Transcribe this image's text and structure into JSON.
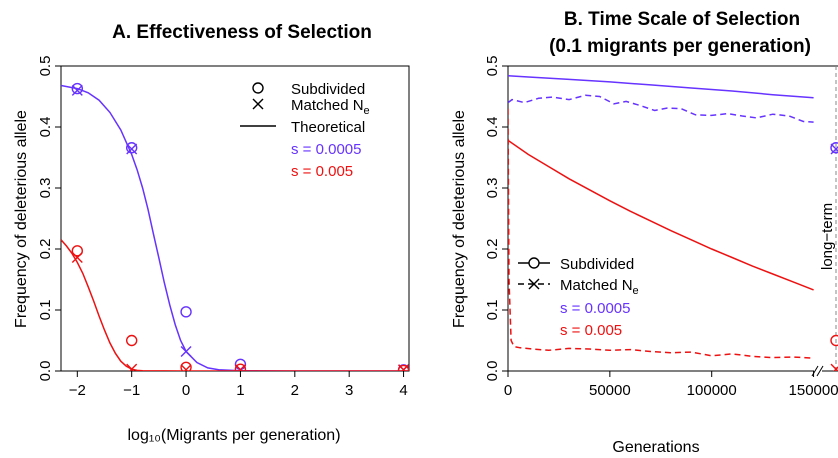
{
  "colors": {
    "purple": "#6633ff",
    "red": "#ee1111",
    "black": "#000000",
    "gray": "#888888"
  },
  "chart_data": [
    {
      "id": "A",
      "type": "scatter",
      "title": "A. Effectiveness of Selection",
      "xlabel": "log₁₀(Migrants per generation)",
      "ylabel": "Frequency of deleterious allele",
      "xlim": [
        -2.3,
        4.1
      ],
      "ylim": [
        0,
        0.5
      ],
      "xticks": [
        "−2",
        "−1",
        "0",
        "1",
        "2",
        "3",
        "4"
      ],
      "xtick_values": [
        -2,
        -1,
        0,
        1,
        2,
        3,
        4
      ],
      "yticks": [
        "0.0",
        "0.1",
        "0.2",
        "0.3",
        "0.4",
        "0.5"
      ],
      "ytick_values": [
        0,
        0.1,
        0.2,
        0.3,
        0.4,
        0.5
      ],
      "legend": {
        "position": "top-right",
        "entries": [
          {
            "label": "Subdivided",
            "marker": "circle"
          },
          {
            "label": "Matched N",
            "sub": "e",
            "marker": "cross"
          },
          {
            "label": "Theoretical",
            "marker": "line"
          },
          {
            "label": "s = 0.0005",
            "color": "purple"
          },
          {
            "label": "s = 0.005",
            "color": "red"
          }
        ]
      },
      "series": [
        {
          "name": "s = 0.0005",
          "color": "purple",
          "subdivided": {
            "x": [
              -2,
              -1,
              0,
              1,
              4
            ],
            "y": [
              0.463,
              0.366,
              0.097,
              0.011,
              0.002
            ]
          },
          "matched": {
            "x": [
              -2,
              -1,
              0,
              1,
              4
            ],
            "y": [
              0.46,
              0.364,
              0.032,
              0.002,
              0.002
            ]
          },
          "theoretical": {
            "x": [
              -2.3,
              -2,
              -1.8,
              -1.6,
              -1.4,
              -1.2,
              -1,
              -0.9,
              -0.8,
              -0.7,
              -0.6,
              -0.5,
              -0.4,
              -0.3,
              -0.2,
              -0.1,
              0,
              0.2,
              0.4,
              0.6,
              1,
              2,
              4.1
            ],
            "y": [
              0.468,
              0.463,
              0.456,
              0.444,
              0.424,
              0.395,
              0.355,
              0.33,
              0.3,
              0.265,
              0.225,
              0.185,
              0.145,
              0.108,
              0.076,
              0.05,
              0.032,
              0.014,
              0.005,
              0.002,
              0.0005,
              0,
              0
            ]
          }
        },
        {
          "name": "s = 0.005",
          "color": "red",
          "subdivided": {
            "x": [
              -2,
              -1,
              0,
              1,
              4
            ],
            "y": [
              0.197,
              0.05,
              0.006,
              0.003,
              0.001
            ]
          },
          "matched": {
            "x": [
              -2,
              -1,
              0,
              1,
              4
            ],
            "y": [
              0.186,
              0.003,
              0.002,
              0.002,
              0.002
            ]
          },
          "theoretical": {
            "x": [
              -2.3,
              -2.2,
              -2.1,
              -2,
              -1.9,
              -1.8,
              -1.7,
              -1.6,
              -1.5,
              -1.4,
              -1.3,
              -1.2,
              -1.1,
              -1,
              -0.9,
              -0.8,
              0,
              4.1
            ],
            "y": [
              0.215,
              0.205,
              0.193,
              0.178,
              0.16,
              0.138,
              0.115,
              0.09,
              0.067,
              0.046,
              0.029,
              0.016,
              0.008,
              0.003,
              0.001,
              0.0003,
              0,
              0
            ]
          }
        }
      ]
    },
    {
      "id": "B",
      "type": "line",
      "title": "B. Time Scale of Selection",
      "subtitle": "(0.1 migrants per generation)",
      "xlabel": "Generations",
      "ylabel": "Frequency of deleterious allele",
      "xlim": [
        0,
        162000
      ],
      "ylim": [
        0,
        0.5
      ],
      "xticks": [
        "0",
        "50000",
        "100000",
        "150000"
      ],
      "xtick_values": [
        0,
        50000,
        100000,
        150000
      ],
      "yticks": [
        "0.0",
        "0.1",
        "0.2",
        "0.3",
        "0.4",
        "0.5"
      ],
      "ytick_values": [
        0,
        0.1,
        0.2,
        0.3,
        0.4,
        0.5
      ],
      "annotation": "long−term",
      "legend": {
        "position": "bottom-left",
        "entries": [
          {
            "label": "Subdivided",
            "marker": "circle",
            "linestyle": "solid"
          },
          {
            "label": "Matched N",
            "sub": "e",
            "marker": "cross",
            "linestyle": "dashed"
          },
          {
            "label": "s = 0.0005",
            "color": "purple"
          },
          {
            "label": "s = 0.005",
            "color": "red"
          }
        ]
      },
      "series": [
        {
          "name": "s = 0.0005",
          "color": "purple",
          "subdivided": {
            "x": [
              0,
              10000,
              30000,
              50000,
              70000,
              90000,
              110000,
              130000,
              150000
            ],
            "y": [
              0.484,
              0.482,
              0.478,
              0.474,
              0.469,
              0.464,
              0.459,
              0.453,
              0.448
            ]
          },
          "matched": {
            "x": [
              0,
              2000,
              8000,
              15000,
              22000,
              30000,
              38000,
              45000,
              52000,
              58000,
              65000,
              72000,
              78000,
              85000,
              92000,
              100000,
              108000,
              115000,
              122000,
              130000,
              138000,
              145000,
              150000
            ],
            "y": [
              0.44,
              0.445,
              0.44,
              0.447,
              0.449,
              0.445,
              0.452,
              0.45,
              0.438,
              0.442,
              0.435,
              0.427,
              0.431,
              0.43,
              0.42,
              0.419,
              0.422,
              0.418,
              0.415,
              0.421,
              0.418,
              0.409,
              0.408
            ]
          },
          "end_markers": {
            "subdivided": 0.366,
            "matched": 0.364
          }
        },
        {
          "name": "s = 0.005",
          "color": "red",
          "subdivided": {
            "x": [
              0,
              10000,
              20000,
              30000,
              40000,
              50000,
              60000,
              70000,
              80000,
              90000,
              100000,
              110000,
              120000,
              130000,
              140000,
              150000
            ],
            "y": [
              0.378,
              0.355,
              0.335,
              0.315,
              0.297,
              0.279,
              0.262,
              0.246,
              0.23,
              0.215,
              0.2,
              0.186,
              0.172,
              0.159,
              0.146,
              0.133
            ]
          },
          "matched": {
            "x": [
              0,
              500,
              1500,
              3000,
              6000,
              12000,
              20000,
              30000,
              40000,
              50000,
              60000,
              70000,
              80000,
              90000,
              100000,
              110000,
              120000,
              130000,
              140000,
              150000
            ],
            "y": [
              0.43,
              0.15,
              0.05,
              0.04,
              0.038,
              0.036,
              0.034,
              0.037,
              0.036,
              0.034,
              0.035,
              0.032,
              0.03,
              0.031,
              0.025,
              0.028,
              0.024,
              0.022,
              0.023,
              0.021
            ]
          },
          "end_markers": {
            "subdivided": 0.05,
            "matched": 0.003
          }
        }
      ]
    }
  ]
}
